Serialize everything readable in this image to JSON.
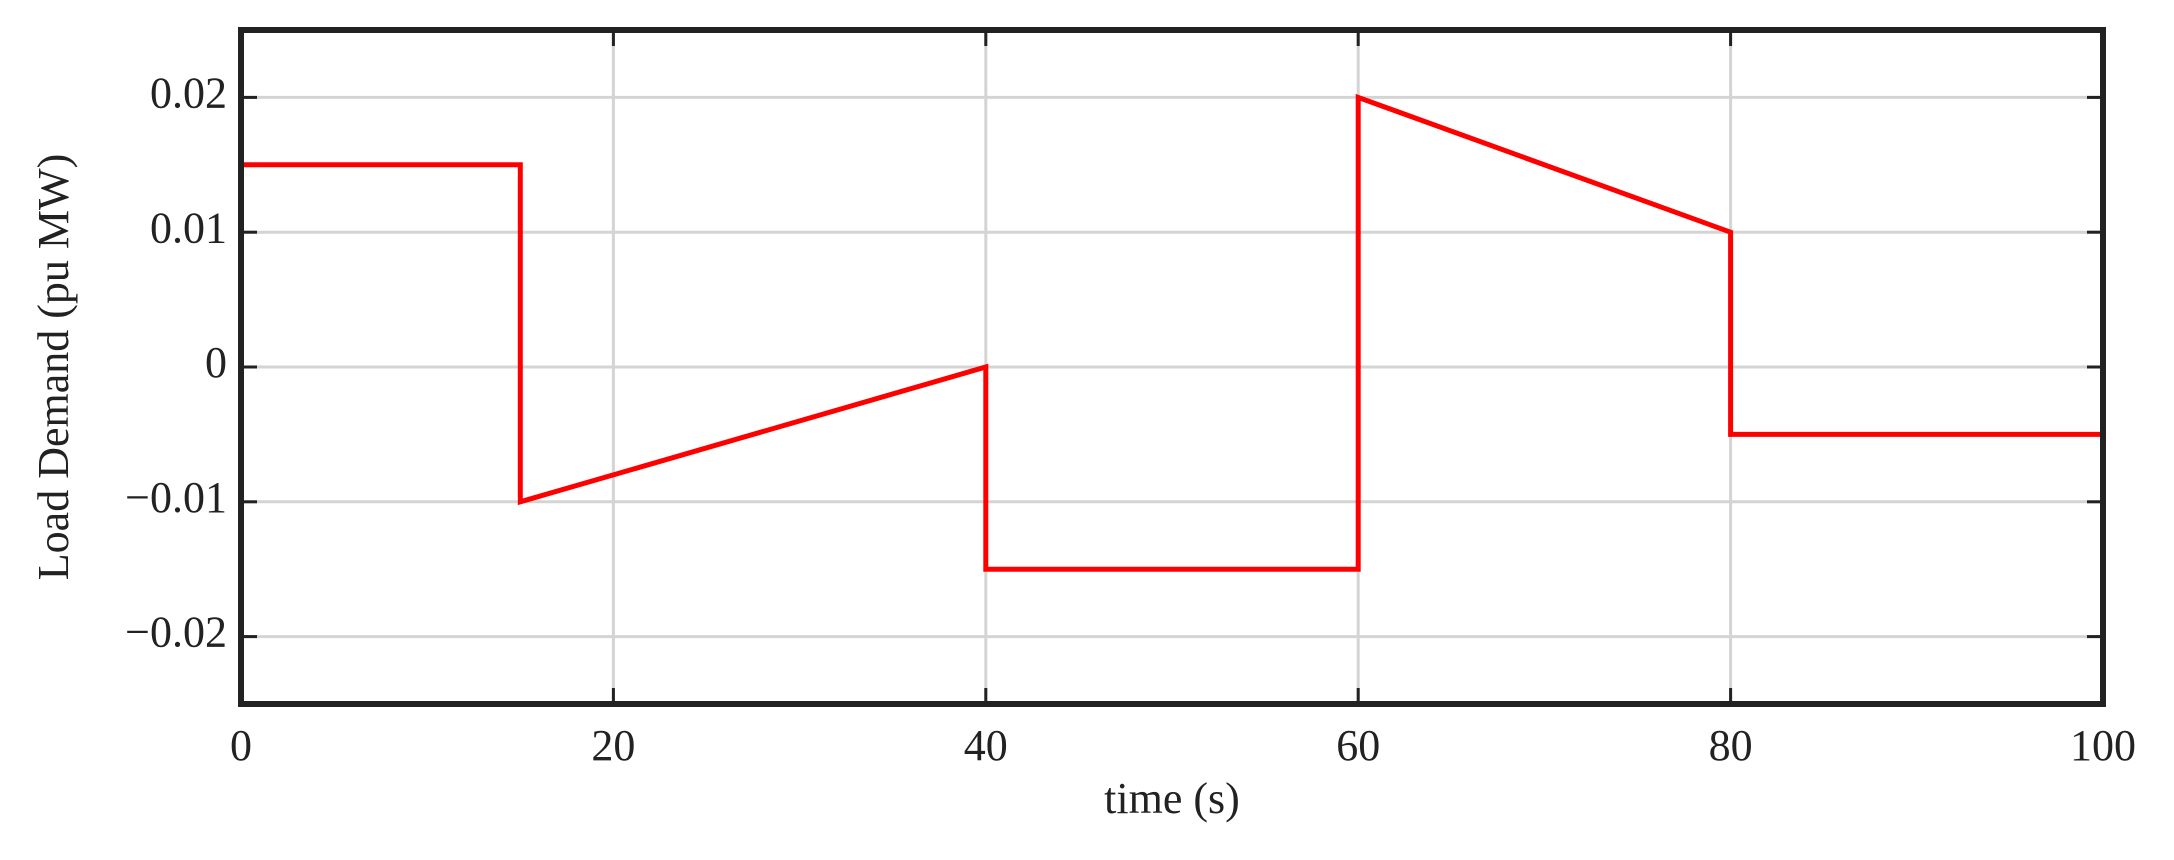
{
  "chart_data": {
    "type": "line",
    "x_label": "time (s)",
    "y_label": "Load Demand (pu MW)",
    "x": [
      0,
      15,
      15,
      40,
      40,
      60,
      60,
      80,
      80,
      100
    ],
    "values": [
      0.015,
      0.015,
      -0.01,
      0,
      -0.015,
      -0.015,
      0.02,
      0.01,
      -0.005,
      -0.005
    ],
    "color": "#ff0000",
    "xlim": [
      0,
      100
    ],
    "xticks": [
      0,
      20,
      40,
      60,
      80,
      100
    ],
    "ylim": [
      -0.025,
      0.025
    ],
    "yticks": [
      {
        "value": -0.02,
        "label": "−0.02"
      },
      {
        "value": -0.01,
        "label": "−0.01"
      },
      0,
      0.01,
      0.02
    ],
    "grid": true
  }
}
